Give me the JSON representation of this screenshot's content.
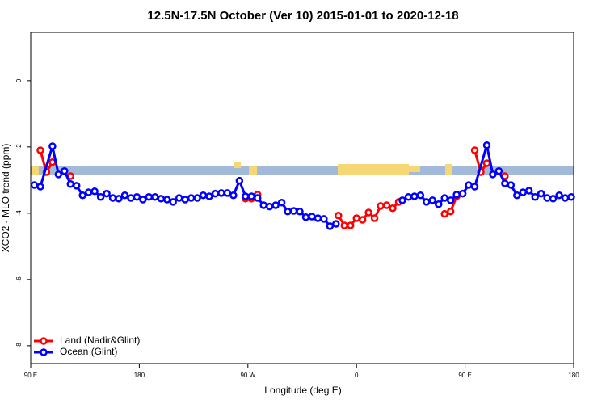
{
  "chart_data": {
    "type": "line",
    "title": "12.5N-17.5N October (Ver 10)   2015-01-01 to 2020-12-18",
    "x_label": "Longitude (deg E)",
    "y_label": "XCO2 - MLO trend (ppm)",
    "xlim": [
      90,
      540
    ],
    "ylim": [
      -8.54,
      1.46
    ],
    "xticks": [
      {
        "value": 90,
        "label": "90 E"
      },
      180,
      {
        "value": 270,
        "label": "90 W"
      },
      {
        "value": 360,
        "label": "0"
      },
      {
        "value": 450,
        "label": "90 E"
      },
      {
        "value": 540,
        "label": "180"
      }
    ],
    "yticks": [
      0,
      -2,
      -4,
      -6,
      -8
    ],
    "legend": "bottom-left",
    "series": [
      {
        "name": "Land (Nadir&Glint)",
        "color": "#ff0000",
        "x": [
          98,
          103,
          108,
          115,
          123,
          200,
          268,
          273,
          278,
          310,
          345,
          350,
          355,
          360,
          365,
          370,
          375,
          380,
          385,
          390,
          395,
          415,
          433,
          438,
          443,
          450,
          458,
          463,
          468,
          475,
          483
        ],
        "values": [
          -2.1,
          -2.76,
          -2.46,
          null,
          -2.88,
          null,
          -3.56,
          -3.56,
          -3.44,
          null,
          -4.07,
          -4.37,
          -4.37,
          -4.15,
          -4.2,
          -3.98,
          -4.15,
          -3.78,
          -3.76,
          -3.85,
          -3.66,
          null,
          -4.02,
          -3.95,
          -3.49,
          null,
          -2.1,
          -2.76,
          -2.49,
          null,
          -2.88
        ]
      },
      {
        "name": "Ocean (Glint)",
        "color": "#0000ff",
        "x": [
          93,
          98,
          108,
          113,
          118,
          123,
          128,
          133,
          138,
          143,
          148,
          153,
          158,
          163,
          168,
          173,
          178,
          183,
          188,
          193,
          198,
          203,
          208,
          213,
          218,
          223,
          228,
          233,
          238,
          243,
          248,
          253,
          258,
          263,
          268,
          273,
          278,
          283,
          288,
          293,
          298,
          303,
          308,
          313,
          318,
          323,
          328,
          333,
          338,
          343,
          370,
          398,
          403,
          408,
          413,
          418,
          423,
          428,
          433,
          438,
          443,
          448,
          453,
          458,
          468,
          473,
          478,
          483,
          488,
          493,
          498,
          503,
          508,
          513,
          518,
          523,
          528,
          533,
          538
        ],
        "values": [
          -3.15,
          -3.2,
          -1.98,
          -2.83,
          -2.73,
          -3.12,
          -3.17,
          -3.46,
          -3.37,
          -3.34,
          -3.51,
          -3.41,
          -3.54,
          -3.56,
          -3.46,
          -3.54,
          -3.51,
          -3.59,
          -3.51,
          -3.51,
          -3.56,
          -3.59,
          -3.66,
          -3.54,
          -3.59,
          -3.54,
          -3.54,
          -3.46,
          -3.49,
          -3.41,
          -3.39,
          -3.39,
          -3.46,
          -3.02,
          -3.49,
          -3.49,
          -3.54,
          -3.76,
          -3.8,
          -3.76,
          -3.68,
          -3.95,
          -3.93,
          -3.95,
          -4.12,
          -4.1,
          -4.15,
          -4.17,
          -4.39,
          -4.32,
          null,
          -3.61,
          -3.51,
          -3.49,
          -3.46,
          -3.66,
          -3.61,
          -3.73,
          -3.54,
          -3.61,
          -3.44,
          -3.41,
          -3.15,
          -3.2,
          -1.95,
          -2.83,
          -2.73,
          -3.1,
          -3.15,
          -3.46,
          -3.37,
          -3.32,
          -3.51,
          -3.41,
          -3.54,
          -3.56,
          -3.46,
          -3.54,
          -3.51
        ]
      }
    ]
  }
}
